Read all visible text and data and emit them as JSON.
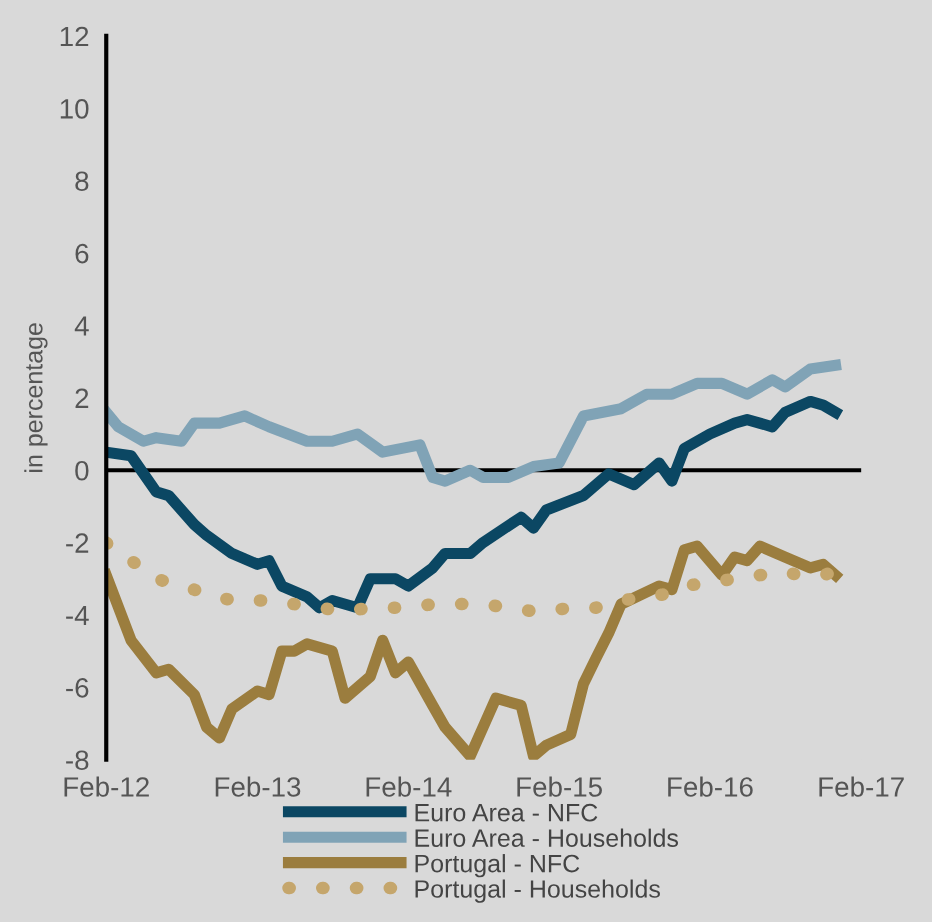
{
  "chart_data": {
    "type": "line",
    "ylabel": "in percentage",
    "xlim": [
      "2012-02",
      "2017-02"
    ],
    "xticks": [
      {
        "value": "2012-02",
        "label": "Feb-12"
      },
      {
        "value": "2013-02",
        "label": "Feb-13"
      },
      {
        "value": "2014-02",
        "label": "Feb-14"
      },
      {
        "value": "2015-02",
        "label": "Feb-15"
      },
      {
        "value": "2016-02",
        "label": "Feb-16"
      },
      {
        "value": "2017-02",
        "label": "Feb-17"
      }
    ],
    "ylim": [
      -8,
      12
    ],
    "yticks": [
      -8,
      -6,
      -4,
      -2,
      0,
      2,
      4,
      6,
      8,
      10,
      12
    ],
    "legend": "bottom",
    "marker": "none",
    "ref_lines": [
      {
        "axis": "y",
        "value": 0,
        "color": "#000000",
        "line_style": "solid"
      }
    ],
    "series": [
      {
        "name": "Euro Area - NFC",
        "color": "#0b4763",
        "line_style": "solid",
        "x": [
          "2012-02",
          "2012-04",
          "2012-06",
          "2012-07",
          "2012-09",
          "2012-10",
          "2012-12",
          "2013-02",
          "2013-03",
          "2013-04",
          "2013-06",
          "2013-07",
          "2013-08",
          "2013-10",
          "2013-11",
          "2014-01",
          "2014-02",
          "2014-04",
          "2014-05",
          "2014-07",
          "2014-08",
          "2014-11",
          "2014-12",
          "2015-01",
          "2015-04",
          "2015-06",
          "2015-08",
          "2015-10",
          "2015-11",
          "2015-12",
          "2016-02",
          "2016-04",
          "2016-05",
          "2016-07",
          "2016-08",
          "2016-10",
          "2016-11",
          "2016-12"
        ],
        "values": [
          0.5,
          0.4,
          -0.6,
          -0.7,
          -1.5,
          -1.8,
          -2.3,
          -2.6,
          -2.5,
          -3.2,
          -3.5,
          -3.8,
          -3.6,
          -3.8,
          -3.0,
          -3.0,
          -3.2,
          -2.7,
          -2.3,
          -2.3,
          -2.0,
          -1.3,
          -1.6,
          -1.1,
          -0.7,
          -0.1,
          -0.4,
          0.2,
          -0.3,
          0.6,
          1.0,
          1.3,
          1.4,
          1.2,
          1.6,
          1.9,
          1.8,
          1.6
        ]
      },
      {
        "name": "Euro Area - Households",
        "color": "#80a3b6",
        "line_style": "solid",
        "x": [
          "2012-02",
          "2012-03",
          "2012-05",
          "2012-06",
          "2012-08",
          "2012-09",
          "2012-11",
          "2013-01",
          "2013-03",
          "2013-06",
          "2013-08",
          "2013-10",
          "2013-12",
          "2014-03",
          "2014-04",
          "2014-05",
          "2014-07",
          "2014-08",
          "2014-10",
          "2014-12",
          "2015-02",
          "2015-04",
          "2015-07",
          "2015-09",
          "2015-11",
          "2016-01",
          "2016-03",
          "2016-05",
          "2016-07",
          "2016-08",
          "2016-10",
          "2016-12"
        ],
        "values": [
          1.6,
          1.2,
          0.8,
          0.9,
          0.8,
          1.3,
          1.3,
          1.5,
          1.2,
          0.8,
          0.8,
          1.0,
          0.5,
          0.7,
          -0.2,
          -0.3,
          0.0,
          -0.2,
          -0.2,
          0.1,
          0.2,
          1.5,
          1.7,
          2.1,
          2.1,
          2.4,
          2.4,
          2.1,
          2.5,
          2.3,
          2.8,
          2.9
        ]
      },
      {
        "name": "Portugal - NFC",
        "color": "#9b7d3e",
        "line_style": "solid",
        "x": [
          "2012-02",
          "2012-04",
          "2012-06",
          "2012-07",
          "2012-09",
          "2012-10",
          "2012-11",
          "2012-12",
          "2013-02",
          "2013-03",
          "2013-04",
          "2013-05",
          "2013-06",
          "2013-08",
          "2013-09",
          "2013-11",
          "2013-12",
          "2014-01",
          "2014-02",
          "2014-04",
          "2014-05",
          "2014-07",
          "2014-09",
          "2014-11",
          "2014-12",
          "2015-01",
          "2015-03",
          "2015-04",
          "2015-05",
          "2015-06",
          "2015-07",
          "2015-10",
          "2015-11",
          "2015-12",
          "2016-01",
          "2016-03",
          "2016-04",
          "2016-05",
          "2016-06",
          "2016-08",
          "2016-10",
          "2016-11",
          "2016-12"
        ],
        "values": [
          -2.9,
          -4.7,
          -5.6,
          -5.5,
          -6.2,
          -7.1,
          -7.4,
          -6.6,
          -6.1,
          -6.2,
          -5.0,
          -5.0,
          -4.8,
          -5.0,
          -6.3,
          -5.7,
          -4.7,
          -5.6,
          -5.3,
          -6.5,
          -7.1,
          -7.9,
          -6.3,
          -6.5,
          -7.9,
          -7.6,
          -7.3,
          -5.9,
          -5.2,
          -4.5,
          -3.7,
          -3.2,
          -3.3,
          -2.2,
          -2.1,
          -2.9,
          -2.4,
          -2.5,
          -2.1,
          -2.4,
          -2.7,
          -2.6,
          -2.9
        ]
      },
      {
        "name": "Portugal - Households",
        "color": "#c5a66c",
        "line_style": "dotted",
        "x": [
          "2012-02",
          "2012-03",
          "2012-05",
          "2012-06",
          "2012-08",
          "2012-10",
          "2012-12",
          "2013-02",
          "2013-03",
          "2013-05",
          "2013-07",
          "2013-09",
          "2013-11",
          "2014-01",
          "2014-02",
          "2014-04",
          "2014-06",
          "2014-08",
          "2014-10",
          "2014-12",
          "2015-01",
          "2015-03",
          "2015-05",
          "2015-07",
          "2015-09",
          "2015-11",
          "2015-12",
          "2016-02",
          "2016-04",
          "2016-06",
          "2016-08",
          "2016-09",
          "2016-11",
          "2016-12"
        ],
        "values": [
          -2.0,
          -2.3,
          -2.7,
          -3.0,
          -3.2,
          -3.4,
          -3.6,
          -3.6,
          -3.6,
          -3.7,
          -3.8,
          -3.9,
          -3.8,
          -3.8,
          -3.8,
          -3.7,
          -3.7,
          -3.7,
          -3.8,
          -3.9,
          -3.9,
          -3.8,
          -3.8,
          -3.6,
          -3.5,
          -3.4,
          -3.2,
          -3.1,
          -3.0,
          -2.9,
          -2.8,
          -2.9,
          -2.9,
          -2.8
        ]
      }
    ]
  }
}
